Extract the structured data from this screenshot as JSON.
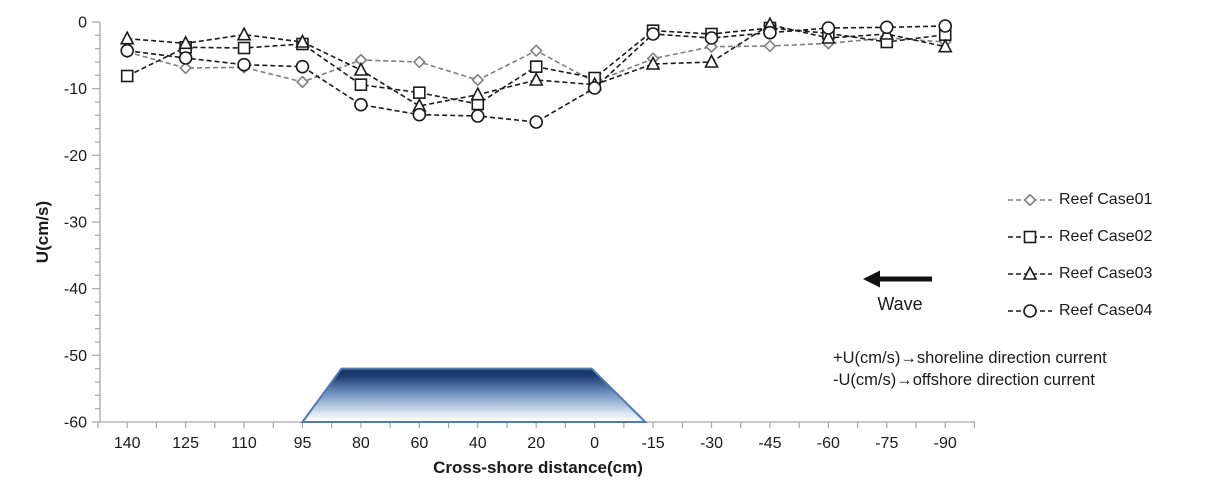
{
  "chart_data": {
    "type": "line",
    "title": "",
    "xlabel": "Cross-shore distance(cm)",
    "ylabel": "U(cm/s)",
    "categories": [
      140,
      125,
      110,
      95,
      80,
      60,
      40,
      20,
      0,
      -15,
      -30,
      -45,
      -60,
      -75,
      -90
    ],
    "x_tick_labels": [
      "140",
      "125",
      "110",
      "95",
      "80",
      "60",
      "40",
      "20",
      "0",
      "-15",
      "-30",
      "-45",
      "-60",
      "-75",
      "-90"
    ],
    "y_ticks": [
      0,
      -10,
      -20,
      -30,
      -40,
      -50,
      -60
    ],
    "ylim": [
      -60,
      0
    ],
    "grid": false,
    "legend_position": "right",
    "line_style": "dashed",
    "series": [
      {
        "name": "Reef Case01",
        "marker": "diamond",
        "color": "#7f7f7f",
        "values": [
          -4.5,
          -6.9,
          -6.8,
          -9.0,
          -5.7,
          -6.0,
          -8.7,
          -4.3,
          -9.0,
          -5.5,
          -3.7,
          -3.6,
          -3.2,
          -2.4,
          -3.0
        ]
      },
      {
        "name": "Reef Case02",
        "marker": "square",
        "color": "#1a1a1a",
        "values": [
          -8.1,
          -3.8,
          -3.9,
          -3.3,
          -9.4,
          -10.6,
          -12.3,
          -6.7,
          -8.4,
          -1.3,
          -1.8,
          -0.9,
          -1.7,
          -3.0,
          -1.9
        ]
      },
      {
        "name": "Reef Case03",
        "marker": "triangle",
        "color": "#1a1a1a",
        "values": [
          -2.5,
          -3.2,
          -1.9,
          -3.0,
          -7.2,
          -12.6,
          -10.9,
          -8.7,
          -9.4,
          -6.3,
          -6.0,
          -0.4,
          -2.4,
          -1.8,
          -3.7
        ]
      },
      {
        "name": "Reef Case04",
        "marker": "circle",
        "color": "#1a1a1a",
        "values": [
          -4.3,
          -5.4,
          -6.4,
          -6.7,
          -12.4,
          -13.9,
          -14.1,
          -15.0,
          -9.9,
          -1.8,
          -2.4,
          -1.6,
          -0.9,
          -0.8,
          -0.6
        ]
      }
    ],
    "reef_structure": {
      "shape": "trapezoid",
      "bottom_cm": [
        95,
        -13
      ],
      "top_cm": [
        85,
        1
      ],
      "top_u": -52,
      "bottom_u": -60,
      "border_color": "#4f7bb0",
      "fill_top": "#18376b",
      "fill_mid": "#6d8fbf",
      "fill_bottom": "#ffffff"
    }
  },
  "annotations": {
    "wave_label": "Wave",
    "note_line1": "+U(cm/s)→shoreline direction current",
    "note_line2": "-U(cm/s)→offshore direction current"
  }
}
